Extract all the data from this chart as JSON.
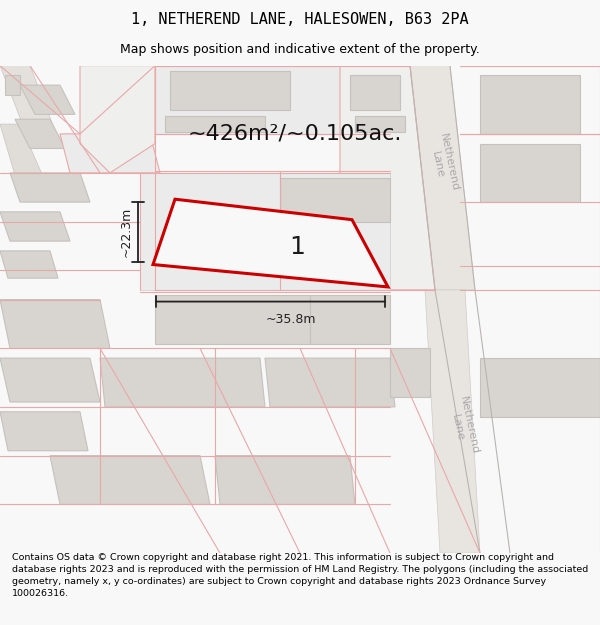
{
  "title": "1, NETHEREND LANE, HALESOWEN, B63 2PA",
  "subtitle": "Map shows position and indicative extent of the property.",
  "footer": "Contains OS data © Crown copyright and database right 2021. This information is subject to Crown copyright and database rights 2023 and is reproduced with the permission of HM Land Registry. The polygons (including the associated geometry, namely x, y co-ordinates) are subject to Crown copyright and database rights 2023 Ordnance Survey 100026316.",
  "area_text": "~426m²/~0.105ac.",
  "width_text": "~35.8m",
  "height_text": "~22.3m",
  "property_label": "1",
  "map_bg": "#f0eeeb",
  "building_fc": "#d8d5d0",
  "building_ec": "#c5c2be",
  "road_fc": "#e4e1dd",
  "parcel_line_color": "#e8a8a8",
  "property_color": "#cc0000",
  "dim_color": "#222222",
  "road_label_color": "#aaaaaa",
  "title_fontsize": 11,
  "subtitle_fontsize": 9,
  "footer_fontsize": 6.8,
  "area_fontsize": 16,
  "label_fontsize": 18
}
